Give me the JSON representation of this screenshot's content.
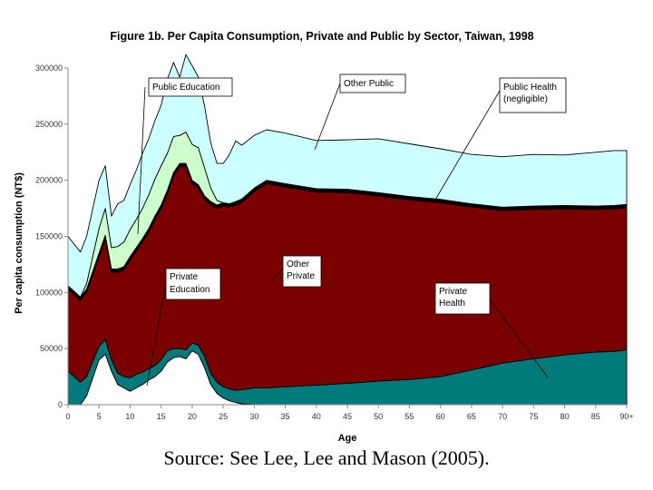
{
  "chart_data": {
    "type": "area",
    "stacked": true,
    "title": "Figure 1b. Per Capita Consumption, Private and Public by Sector, Taiwan, 1998",
    "xlabel": "Age",
    "ylabel": "Per capita consumption (NT$)",
    "ylim": [
      0,
      300000
    ],
    "xlim": [
      0,
      90
    ],
    "yticks": [
      "0",
      "50000",
      "100000",
      "150000",
      "200000",
      "250000",
      "300000"
    ],
    "xticks": [
      "0",
      "5",
      "10",
      "15",
      "20",
      "25",
      "30",
      "35",
      "40",
      "45",
      "50",
      "55",
      "60",
      "65",
      "70",
      "75",
      "80",
      "85",
      "90+"
    ],
    "x": [
      0,
      2,
      3,
      5,
      6,
      7,
      8,
      9,
      10,
      11,
      12,
      13,
      14,
      15,
      16,
      17,
      18,
      19,
      20,
      21,
      22,
      23,
      24,
      25,
      26,
      27,
      28,
      30,
      32,
      35,
      40,
      45,
      50,
      55,
      60,
      65,
      70,
      75,
      80,
      85,
      88,
      90
    ],
    "series": [
      {
        "name": "Private Education",
        "color": "#ffffff",
        "values": [
          0,
          0,
          8000,
          40000,
          45000,
          30000,
          18000,
          15000,
          12000,
          15000,
          18000,
          22000,
          25000,
          30000,
          38000,
          42000,
          43000,
          41000,
          48000,
          45000,
          33000,
          18000,
          10000,
          6000,
          3500,
          2000,
          800,
          0,
          0,
          0,
          0,
          0,
          0,
          0,
          0,
          0,
          0,
          0,
          0,
          0,
          0,
          0
        ]
      },
      {
        "name": "Private Health",
        "color": "#007a7a",
        "values": [
          30000,
          20000,
          17000,
          12000,
          13000,
          10000,
          10000,
          10000,
          12000,
          12000,
          11000,
          10000,
          10000,
          10000,
          10000,
          8000,
          7000,
          8000,
          7000,
          8000,
          10000,
          10000,
          10000,
          10000,
          10500,
          11000,
          12500,
          15000,
          15000,
          16000,
          17500,
          19000,
          21000,
          22500,
          25000,
          31000,
          37000,
          41000,
          44500,
          47000,
          47500,
          49000
        ]
      },
      {
        "name": "Other Private",
        "color": "#7b0000",
        "values": [
          73000,
          73000,
          75000,
          80000,
          90000,
          78000,
          90000,
          95000,
          105000,
          110000,
          116000,
          122000,
          130000,
          135000,
          140000,
          154000,
          162000,
          163000,
          142000,
          140000,
          140000,
          150000,
          155000,
          161000,
          162000,
          165000,
          167000,
          175000,
          182000,
          178000,
          172000,
          170000,
          165000,
          160000,
          155000,
          145000,
          136000,
          133000,
          130000,
          127000,
          127000,
          126500
        ]
      },
      {
        "name": "Public Health",
        "color": "#000000",
        "values": [
          3000,
          3000,
          3000,
          3000,
          3000,
          3000,
          3000,
          3000,
          3000,
          3000,
          3000,
          3000,
          3000,
          3000,
          3000,
          3000,
          3000,
          3000,
          3000,
          3000,
          3000,
          3000,
          3000,
          3000,
          3000,
          3000,
          3000,
          3000,
          3000,
          3000,
          3000,
          3000,
          3000,
          3000,
          3000,
          3000,
          3000,
          3000,
          3000,
          3000,
          3000,
          3000
        ]
      },
      {
        "name": "Public Education",
        "color": "#ccffcc",
        "values": [
          0,
          0,
          5000,
          22000,
          24000,
          19000,
          20000,
          22000,
          24000,
          25000,
          27000,
          30000,
          33000,
          35000,
          33000,
          32000,
          25000,
          28000,
          32000,
          33000,
          25000,
          12000,
          4000,
          0,
          0,
          0,
          0,
          0,
          0,
          0,
          0,
          0,
          0,
          0,
          0,
          0,
          0,
          0,
          0,
          0,
          0,
          0
        ]
      },
      {
        "name": "Other Public",
        "color": "#ccffff",
        "values": [
          44000,
          40000,
          42000,
          43000,
          38000,
          28000,
          38000,
          37000,
          40000,
          44000,
          49000,
          50000,
          52000,
          54000,
          66000,
          66000,
          52000,
          69000,
          70000,
          63000,
          55000,
          40000,
          33000,
          35000,
          44000,
          54000,
          48000,
          47000,
          45000,
          45000,
          43000,
          44000,
          48000,
          47000,
          45000,
          44000,
          45000,
          46000,
          45000,
          48000,
          49000,
          48000
        ]
      }
    ],
    "annotations": [
      {
        "text": "Public Education"
      },
      {
        "text": "Other Public"
      },
      {
        "text": "Public Health"
      },
      {
        "text": "(negligible)"
      },
      {
        "text": "Other"
      },
      {
        "text": "Private"
      },
      {
        "text": "Private"
      },
      {
        "text": "Education"
      },
      {
        "text": "Private"
      },
      {
        "text": "Health"
      }
    ]
  },
  "source": "Source: See Lee, Lee and Mason (2005)."
}
